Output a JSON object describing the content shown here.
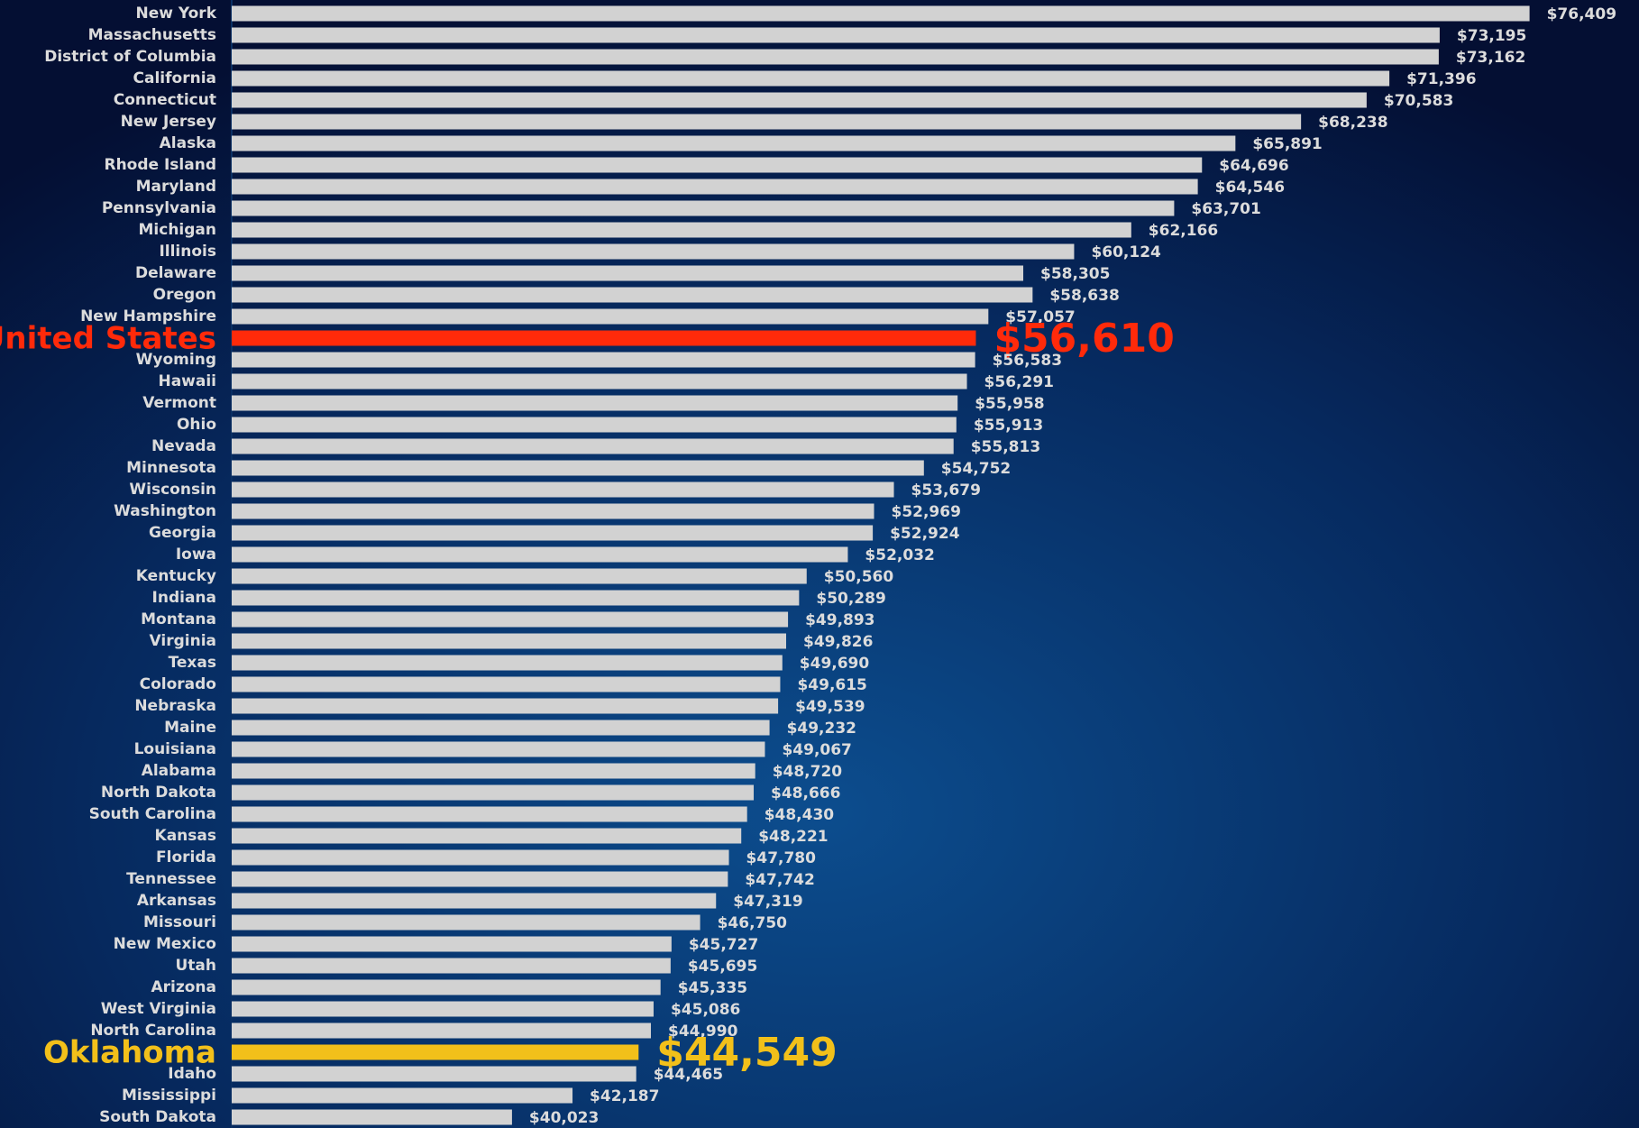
{
  "chart_data": {
    "type": "barh",
    "categories": [
      "New York",
      "Massachusetts",
      "District of Columbia",
      "California",
      "Connecticut",
      "New Jersey",
      "Alaska",
      "Rhode Island",
      "Maryland",
      "Pennsylvania",
      "Michigan",
      "Illinois",
      "Delaware",
      "Oregon",
      "New Hampshire",
      "United States",
      "Wyoming",
      "Hawaii",
      "Vermont",
      "Ohio",
      "Nevada",
      "Minnesota",
      "Wisconsin",
      "Washington",
      "Georgia",
      "Iowa",
      "Kentucky",
      "Indiana",
      "Montana",
      "Virginia",
      "Texas",
      "Colorado",
      "Nebraska",
      "Maine",
      "Louisiana",
      "Alabama",
      "North Dakota",
      "South Carolina",
      "Kansas",
      "Florida",
      "Tennessee",
      "Arkansas",
      "Missouri",
      "New Mexico",
      "Utah",
      "Arizona",
      "West Virginia",
      "North Carolina",
      "Oklahoma",
      "Idaho",
      "Mississippi",
      "South Dakota"
    ],
    "values": [
      76409,
      73195,
      73162,
      71396,
      70583,
      68238,
      65891,
      64696,
      64546,
      63701,
      62166,
      60124,
      58305,
      58638,
      57057,
      56610,
      56583,
      56291,
      55958,
      55913,
      55813,
      54752,
      53679,
      52969,
      52924,
      52032,
      50560,
      50289,
      49893,
      49826,
      49690,
      49615,
      49539,
      49232,
      49067,
      48720,
      48666,
      48430,
      48221,
      47780,
      47742,
      47319,
      46750,
      45727,
      45695,
      45335,
      45086,
      44990,
      44549,
      44465,
      42187,
      40023
    ],
    "value_labels": [
      "$76,409",
      "$73,195",
      "$73,162",
      "$71,396",
      "$70,583",
      "$68,238",
      "$65,891",
      "$64,696",
      "$64,546",
      "$63,701",
      "$62,166",
      "$60,124",
      "$58,305",
      "$58,638",
      "$57,057",
      "$56,610",
      "$56,583",
      "$56,291",
      "$55,958",
      "$55,913",
      "$55,813",
      "$54,752",
      "$53,679",
      "$52,969",
      "$52,924",
      "$52,032",
      "$50,560",
      "$50,289",
      "$49,893",
      "$49,826",
      "$49,690",
      "$49,615",
      "$49,539",
      "$49,232",
      "$49,067",
      "$48,720",
      "$48,666",
      "$48,430",
      "$48,221",
      "$47,780",
      "$47,742",
      "$47,319",
      "$46,750",
      "$45,727",
      "$45,695",
      "$45,335",
      "$45,086",
      "$44,990",
      "$44,549",
      "$44,465",
      "$42,187",
      "$40,023"
    ],
    "color": "#d2d2d2",
    "colors": [
      "#d2d2d2",
      "#d2d2d2",
      "#d2d2d2",
      "#d2d2d2",
      "#d2d2d2",
      "#d2d2d2",
      "#d2d2d2",
      "#d2d2d2",
      "#d2d2d2",
      "#d2d2d2",
      "#d2d2d2",
      "#d2d2d2",
      "#d2d2d2",
      "#d2d2d2",
      "#d2d2d2",
      "#ff2a0a",
      "#d2d2d2",
      "#d2d2d2",
      "#d2d2d2",
      "#d2d2d2",
      "#d2d2d2",
      "#d2d2d2",
      "#d2d2d2",
      "#d2d2d2",
      "#d2d2d2",
      "#d2d2d2",
      "#d2d2d2",
      "#d2d2d2",
      "#d2d2d2",
      "#d2d2d2",
      "#d2d2d2",
      "#d2d2d2",
      "#d2d2d2",
      "#d2d2d2",
      "#d2d2d2",
      "#d2d2d2",
      "#d2d2d2",
      "#d2d2d2",
      "#d2d2d2",
      "#d2d2d2",
      "#d2d2d2",
      "#d2d2d2",
      "#d2d2d2",
      "#d2d2d2",
      "#d2d2d2",
      "#d2d2d2",
      "#d2d2d2",
      "#d2d2d2",
      "#f2c01a",
      "#d2d2d2",
      "#d2d2d2",
      "#d2d2d2"
    ],
    "xlim": [
      30000,
      80000
    ]
  }
}
